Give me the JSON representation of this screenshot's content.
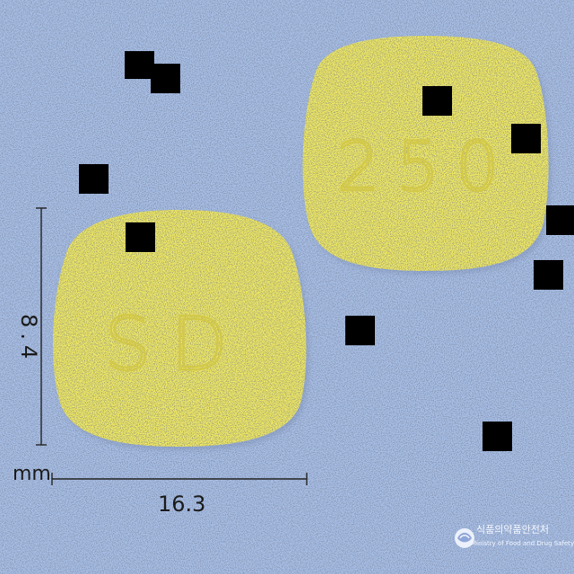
{
  "image": {
    "background_color": "#a9c0e8",
    "tablet_color": "#f2ea62",
    "mask_color": "#000000"
  },
  "front_tablet": {
    "imprint": "SD"
  },
  "back_tablet": {
    "imprint": "250"
  },
  "dimensions": {
    "height": "8.4",
    "width": "16.3",
    "unit": "mm"
  },
  "logo": {
    "korean_text": "식품의약품안전처",
    "english_text": "Ministry of Food and Drug Safety"
  }
}
